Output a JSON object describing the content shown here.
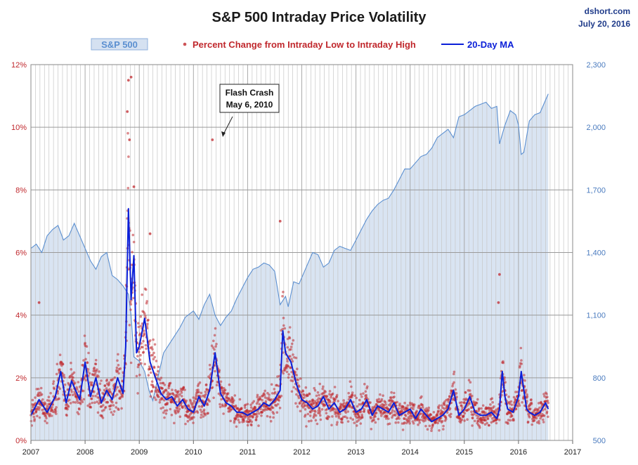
{
  "chart_data": {
    "type": "line",
    "title": "S&P 500 Intraday Price Volatility",
    "source": "dshort.com",
    "date": "July 20, 2016",
    "legend": {
      "placement": "top",
      "items": [
        {
          "key": "sp500",
          "label": "S&P 500",
          "color": "#5b8fd0"
        },
        {
          "key": "pct",
          "label": "Percent Change from Intraday Low to Intraday High",
          "color": "#c0282d"
        },
        {
          "key": "ma",
          "label": "20-Day MA",
          "color": "#0a1fd8"
        }
      ]
    },
    "x_axis": {
      "min": 2007,
      "max": 2017,
      "ticks": [
        "2007",
        "2008",
        "2009",
        "2010",
        "2011",
        "2012",
        "2013",
        "2014",
        "2015",
        "2016",
        "2017"
      ]
    },
    "y_left": {
      "min": 0,
      "max": 12,
      "ticks": [
        "0%",
        "2%",
        "4%",
        "6%",
        "8%",
        "10%",
        "12%"
      ],
      "color": "#c0282d"
    },
    "y_right": {
      "min": 500,
      "max": 2300,
      "ticks": [
        "500",
        "800",
        "1,100",
        "1,400",
        "1,700",
        "2,000",
        "2,300"
      ],
      "color": "#4a7bbf"
    },
    "grid": {
      "horizontal": true,
      "vertical_monthly": true
    },
    "annotation": {
      "lines": [
        "Flash Crash",
        "May 6, 2010"
      ],
      "x": 2010.35,
      "y": 9.6
    },
    "series": [
      {
        "name": "S&P 500",
        "axis": "right",
        "style": "area",
        "x": [
          2007.0,
          2007.1,
          2007.2,
          2007.3,
          2007.4,
          2007.5,
          2007.6,
          2007.7,
          2007.8,
          2007.9,
          2008.0,
          2008.1,
          2008.2,
          2008.3,
          2008.4,
          2008.5,
          2008.6,
          2008.7,
          2008.8,
          2008.85,
          2008.9,
          2009.0,
          2009.1,
          2009.18,
          2009.25,
          2009.35,
          2009.45,
          2009.55,
          2009.65,
          2009.75,
          2009.85,
          2010.0,
          2010.1,
          2010.2,
          2010.3,
          2010.4,
          2010.5,
          2010.6,
          2010.7,
          2010.8,
          2010.9,
          2011.0,
          2011.1,
          2011.2,
          2011.3,
          2011.4,
          2011.5,
          2011.6,
          2011.7,
          2011.75,
          2011.85,
          2011.95,
          2012.0,
          2012.1,
          2012.2,
          2012.3,
          2012.4,
          2012.5,
          2012.6,
          2012.7,
          2012.8,
          2012.9,
          2013.0,
          2013.1,
          2013.2,
          2013.3,
          2013.4,
          2013.5,
          2013.6,
          2013.7,
          2013.8,
          2013.9,
          2014.0,
          2014.1,
          2014.2,
          2014.3,
          2014.4,
          2014.5,
          2014.6,
          2014.7,
          2014.8,
          2014.9,
          2015.0,
          2015.1,
          2015.2,
          2015.3,
          2015.4,
          2015.5,
          2015.6,
          2015.65,
          2015.75,
          2015.85,
          2015.95,
          2016.0,
          2016.05,
          2016.1,
          2016.2,
          2016.3,
          2016.4,
          2016.5,
          2016.55
        ],
        "values": [
          1420,
          1440,
          1400,
          1480,
          1510,
          1530,
          1460,
          1480,
          1540,
          1480,
          1420,
          1360,
          1320,
          1380,
          1400,
          1290,
          1270,
          1240,
          1200,
          1100,
          900,
          880,
          830,
          740,
          690,
          810,
          920,
          960,
          1000,
          1040,
          1090,
          1120,
          1080,
          1150,
          1200,
          1100,
          1050,
          1090,
          1120,
          1180,
          1230,
          1280,
          1320,
          1330,
          1350,
          1340,
          1310,
          1150,
          1190,
          1140,
          1260,
          1250,
          1280,
          1340,
          1400,
          1390,
          1330,
          1350,
          1410,
          1430,
          1420,
          1410,
          1460,
          1510,
          1560,
          1600,
          1630,
          1650,
          1660,
          1700,
          1750,
          1800,
          1800,
          1830,
          1860,
          1870,
          1900,
          1950,
          1970,
          1990,
          1950,
          2050,
          2060,
          2080,
          2100,
          2110,
          2120,
          2090,
          2100,
          1920,
          2010,
          2080,
          2060,
          2010,
          1870,
          1880,
          2030,
          2060,
          2070,
          2130,
          2160
        ]
      },
      {
        "name": "20-Day MA",
        "axis": "left",
        "style": "line",
        "x": [
          2007.0,
          2007.15,
          2007.3,
          2007.45,
          2007.55,
          2007.65,
          2007.75,
          2007.9,
          2008.0,
          2008.1,
          2008.2,
          2008.3,
          2008.4,
          2008.5,
          2008.6,
          2008.7,
          2008.75,
          2008.8,
          2008.85,
          2008.9,
          2008.95,
          2009.0,
          2009.1,
          2009.2,
          2009.3,
          2009.4,
          2009.5,
          2009.6,
          2009.7,
          2009.8,
          2009.9,
          2010.0,
          2010.1,
          2010.2,
          2010.3,
          2010.4,
          2010.5,
          2010.6,
          2010.7,
          2010.8,
          2010.9,
          2011.0,
          2011.1,
          2011.2,
          2011.3,
          2011.4,
          2011.5,
          2011.6,
          2011.65,
          2011.7,
          2011.8,
          2011.9,
          2012.0,
          2012.1,
          2012.2,
          2012.3,
          2012.4,
          2012.5,
          2012.6,
          2012.7,
          2012.8,
          2012.9,
          2013.0,
          2013.1,
          2013.2,
          2013.3,
          2013.4,
          2013.5,
          2013.6,
          2013.7,
          2013.8,
          2013.9,
          2014.0,
          2014.1,
          2014.2,
          2014.3,
          2014.4,
          2014.5,
          2014.6,
          2014.7,
          2014.8,
          2014.9,
          2015.0,
          2015.1,
          2015.2,
          2015.3,
          2015.4,
          2015.5,
          2015.6,
          2015.65,
          2015.7,
          2015.75,
          2015.8,
          2015.9,
          2016.0,
          2016.05,
          2016.1,
          2016.15,
          2016.2,
          2016.3,
          2016.4,
          2016.5,
          2016.55
        ],
        "values": [
          0.8,
          1.3,
          0.9,
          1.4,
          2.2,
          1.2,
          1.9,
          1.3,
          2.5,
          1.4,
          2.0,
          1.2,
          1.6,
          1.3,
          2.0,
          1.5,
          3.0,
          7.4,
          4.5,
          5.9,
          2.8,
          3.0,
          3.9,
          2.5,
          2.0,
          1.5,
          1.3,
          1.4,
          1.1,
          1.3,
          1.0,
          0.9,
          1.4,
          1.1,
          1.6,
          2.8,
          1.5,
          1.2,
          1.1,
          0.9,
          0.9,
          0.8,
          0.9,
          1.0,
          1.2,
          1.1,
          1.3,
          1.6,
          3.5,
          2.8,
          2.5,
          1.8,
          1.3,
          1.2,
          1.0,
          1.1,
          1.4,
          1.0,
          1.2,
          0.9,
          1.0,
          1.3,
          0.9,
          1.0,
          1.3,
          0.8,
          1.1,
          1.0,
          0.9,
          1.2,
          0.8,
          0.9,
          1.0,
          0.7,
          1.0,
          0.8,
          0.6,
          0.7,
          0.8,
          1.0,
          1.6,
          0.8,
          1.0,
          1.4,
          0.9,
          0.8,
          0.8,
          0.9,
          0.7,
          1.0,
          2.2,
          1.4,
          1.0,
          0.9,
          1.4,
          2.2,
          1.6,
          1.0,
          0.9,
          0.8,
          0.9,
          1.2,
          1.0
        ]
      },
      {
        "name": "Percent Change from Intraday Low to Intraday High",
        "axis": "left",
        "style": "scatter",
        "note": "daily points; dense cloud follows the 20-Day MA",
        "notable_points": [
          {
            "x": 2008.8,
            "y": 11.5
          },
          {
            "x": 2008.85,
            "y": 11.6
          },
          {
            "x": 2008.78,
            "y": 10.5
          },
          {
            "x": 2008.82,
            "y": 9.6
          },
          {
            "x": 2008.9,
            "y": 8.1
          },
          {
            "x": 2009.2,
            "y": 6.6
          },
          {
            "x": 2010.35,
            "y": 9.6
          },
          {
            "x": 2011.6,
            "y": 7.0
          },
          {
            "x": 2015.65,
            "y": 5.3
          },
          {
            "x": 2015.63,
            "y": 4.4
          },
          {
            "x": 2007.15,
            "y": 4.4
          }
        ]
      }
    ]
  }
}
